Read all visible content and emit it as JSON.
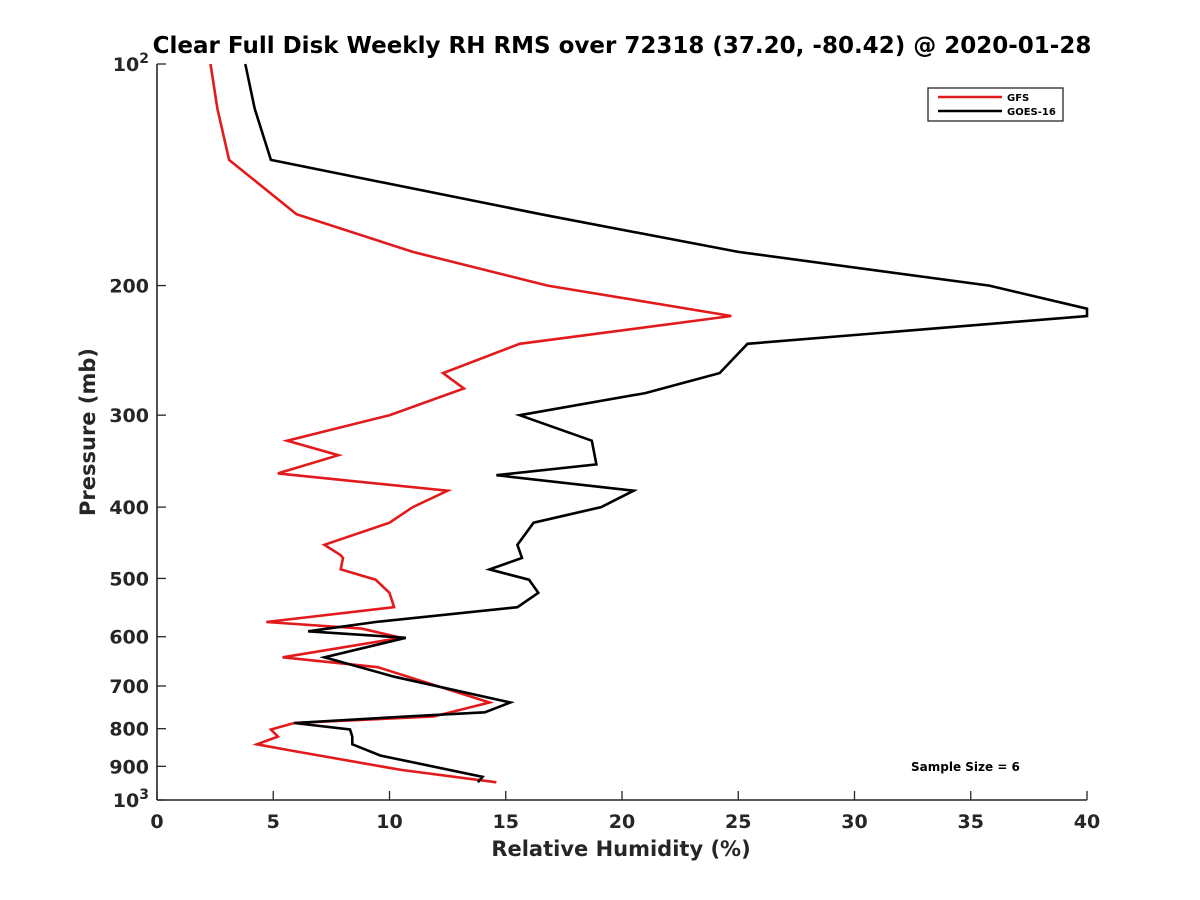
{
  "chart_data": {
    "type": "line",
    "title": "Clear Full Disk Weekly RH RMS over 72318 (37.20, -80.42) @ 2020-01-28",
    "xlabel": "Relative Humidity (%)",
    "ylabel": "Pressure (mb)",
    "xlim": [
      0,
      40
    ],
    "ylim": [
      100,
      1000
    ],
    "y_scale": "log",
    "y_reversed": true,
    "x_ticks": [
      "0",
      "5",
      "10",
      "15",
      "20",
      "25",
      "30",
      "35",
      "40"
    ],
    "y_ticks": [
      {
        "value": 100,
        "base": "10",
        "exp": "2"
      },
      {
        "value": 200,
        "base": "200",
        "exp": ""
      },
      {
        "value": 300,
        "base": "300",
        "exp": ""
      },
      {
        "value": 400,
        "base": "400",
        "exp": ""
      },
      {
        "value": 500,
        "base": "500",
        "exp": ""
      },
      {
        "value": 600,
        "base": "600",
        "exp": ""
      },
      {
        "value": 700,
        "base": "700",
        "exp": ""
      },
      {
        "value": 800,
        "base": "800",
        "exp": ""
      },
      {
        "value": 900,
        "base": "900",
        "exp": ""
      },
      {
        "value": 1000,
        "base": "10",
        "exp": "3"
      }
    ],
    "grid": false,
    "legend_position": "top-right",
    "annotation": "Sample Size = 6",
    "series": [
      {
        "name": "GFS",
        "color": "#e31a1c",
        "points": [
          [
            2.3,
            100
          ],
          [
            2.6,
            115
          ],
          [
            3.1,
            135
          ],
          [
            6.0,
            160
          ],
          [
            11.0,
            180
          ],
          [
            16.8,
            200
          ],
          [
            24.7,
            220
          ],
          [
            15.6,
            240
          ],
          [
            12.3,
            263
          ],
          [
            13.2,
            276
          ],
          [
            10.0,
            300
          ],
          [
            5.6,
            325
          ],
          [
            7.8,
            340
          ],
          [
            5.2,
            360
          ],
          [
            12.5,
            380
          ],
          [
            11.0,
            400
          ],
          [
            10.0,
            420
          ],
          [
            7.2,
            450
          ],
          [
            7.9,
            465
          ],
          [
            8.0,
            469
          ],
          [
            7.9,
            486
          ],
          [
            9.4,
            502
          ],
          [
            10.0,
            523
          ],
          [
            10.2,
            547
          ],
          [
            4.7,
            573
          ],
          [
            8.8,
            585
          ],
          [
            10.5,
            602
          ],
          [
            5.4,
            640
          ],
          [
            9.5,
            660
          ],
          [
            14.3,
            737
          ],
          [
            11.9,
            770
          ],
          [
            5.9,
            786
          ],
          [
            4.9,
            802
          ],
          [
            5.2,
            820
          ],
          [
            4.3,
            840
          ],
          [
            5.6,
            855
          ],
          [
            10.5,
            910
          ],
          [
            14.6,
            946
          ]
        ]
      },
      {
        "name": "GOES-16",
        "color": "#000000",
        "points": [
          [
            3.8,
            100
          ],
          [
            4.2,
            115
          ],
          [
            4.9,
            135
          ],
          [
            16.5,
            160
          ],
          [
            25.0,
            180
          ],
          [
            35.8,
            200
          ],
          [
            40.0,
            215
          ],
          [
            40.0,
            220
          ],
          [
            25.4,
            240
          ],
          [
            24.2,
            263
          ],
          [
            21.0,
            280
          ],
          [
            15.6,
            300
          ],
          [
            18.7,
            325
          ],
          [
            18.9,
            350
          ],
          [
            14.6,
            362
          ],
          [
            20.5,
            380
          ],
          [
            19.1,
            400
          ],
          [
            16.2,
            420
          ],
          [
            15.5,
            450
          ],
          [
            15.7,
            469
          ],
          [
            14.3,
            486
          ],
          [
            16.0,
            502
          ],
          [
            16.4,
            523
          ],
          [
            15.5,
            547
          ],
          [
            9.4,
            573
          ],
          [
            6.5,
            590
          ],
          [
            10.7,
            602
          ],
          [
            7.2,
            640
          ],
          [
            10.2,
            680
          ],
          [
            15.2,
            737
          ],
          [
            14.1,
            760
          ],
          [
            10.7,
            770
          ],
          [
            5.9,
            786
          ],
          [
            8.3,
            802
          ],
          [
            8.4,
            820
          ],
          [
            8.4,
            840
          ],
          [
            9.6,
            870
          ],
          [
            14.0,
            930
          ],
          [
            13.8,
            946
          ]
        ]
      }
    ]
  }
}
